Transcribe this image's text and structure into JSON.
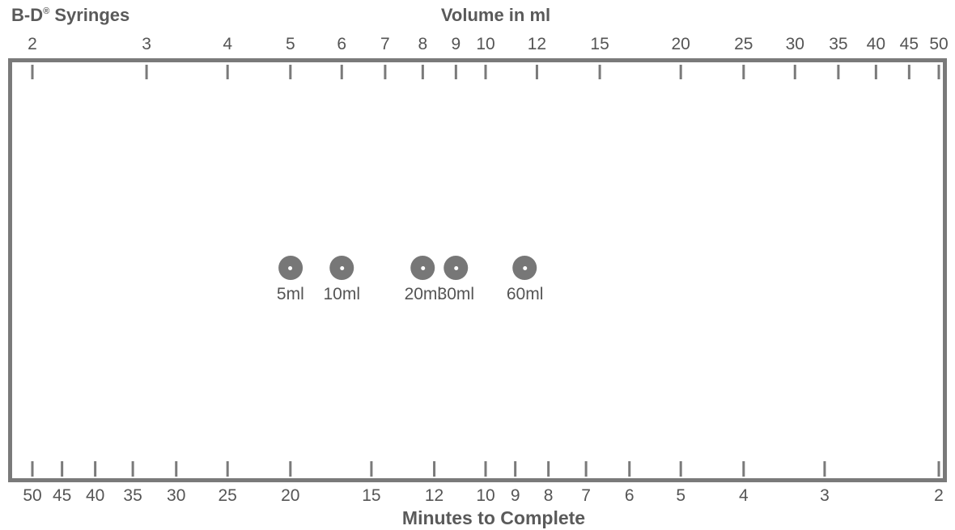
{
  "header": {
    "brand": "B-D",
    "brand_mark": "®",
    "brand_rest": " Syringes",
    "top_title": "Volume in ml"
  },
  "footer": {
    "bottom_title": "Minutes to Complete"
  },
  "top_scale": {
    "labels": [
      "2",
      "3",
      "4",
      "5",
      "6",
      "7",
      "8",
      "9",
      "10",
      "12",
      "15",
      "20",
      "25",
      "30",
      "35",
      "40",
      "45",
      "50"
    ],
    "values": [
      2,
      3,
      4,
      5,
      6,
      7,
      8,
      9,
      10,
      12,
      15,
      20,
      25,
      30,
      35,
      40,
      45,
      50
    ]
  },
  "bottom_scale": {
    "labels": [
      "50",
      "45",
      "40",
      "35",
      "30",
      "25",
      "20",
      "15",
      "12",
      "10",
      "9",
      "8",
      "7",
      "6",
      "5",
      "4",
      "3",
      "2"
    ],
    "values": [
      50,
      45,
      40,
      35,
      30,
      25,
      20,
      15,
      12,
      10,
      9,
      8,
      7,
      6,
      5,
      4,
      3,
      2
    ]
  },
  "syringes": [
    {
      "label": "5ml",
      "volume": 5
    },
    {
      "label": "10ml",
      "volume": 6
    },
    {
      "label": "20ml",
      "volume": 8
    },
    {
      "label": "30ml",
      "volume": 9
    },
    {
      "label": "60ml",
      "volume": 11.5
    }
  ],
  "colors": {
    "frame": "#7a7a7a",
    "dot": "#777777",
    "text": "#5a5a5a"
  }
}
